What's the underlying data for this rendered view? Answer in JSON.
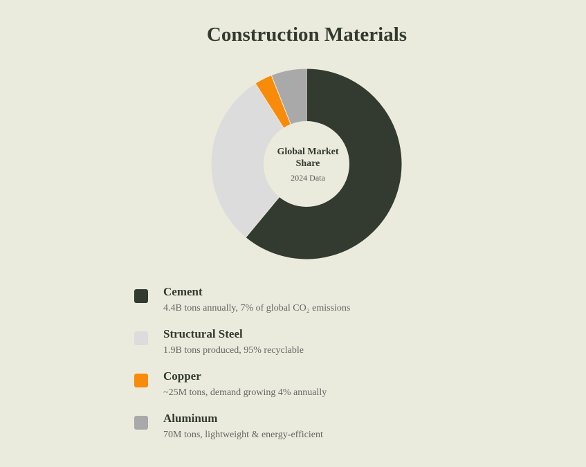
{
  "chart_data": {
    "type": "pie",
    "title": "Construction Materials",
    "center_label": "Global Market Share",
    "center_sublabel": "2024 Data",
    "slices": [
      {
        "name": "Cement",
        "value": 61,
        "color": "#333a2f",
        "description": "4.4B tons annually, 7% of global CO₂ emissions"
      },
      {
        "name": "Structural Steel",
        "value": 30,
        "color": "#dcdcdc",
        "description": "1.9B tons produced, 95% recyclable"
      },
      {
        "name": "Copper",
        "value": 3,
        "color": "#f98b0a",
        "description": "~25M tons, demand growing 4% annually"
      },
      {
        "name": "Aluminum",
        "value": 6,
        "color": "#a9a9a9",
        "description": "70M tons, lightweight & energy-efficient"
      }
    ]
  }
}
